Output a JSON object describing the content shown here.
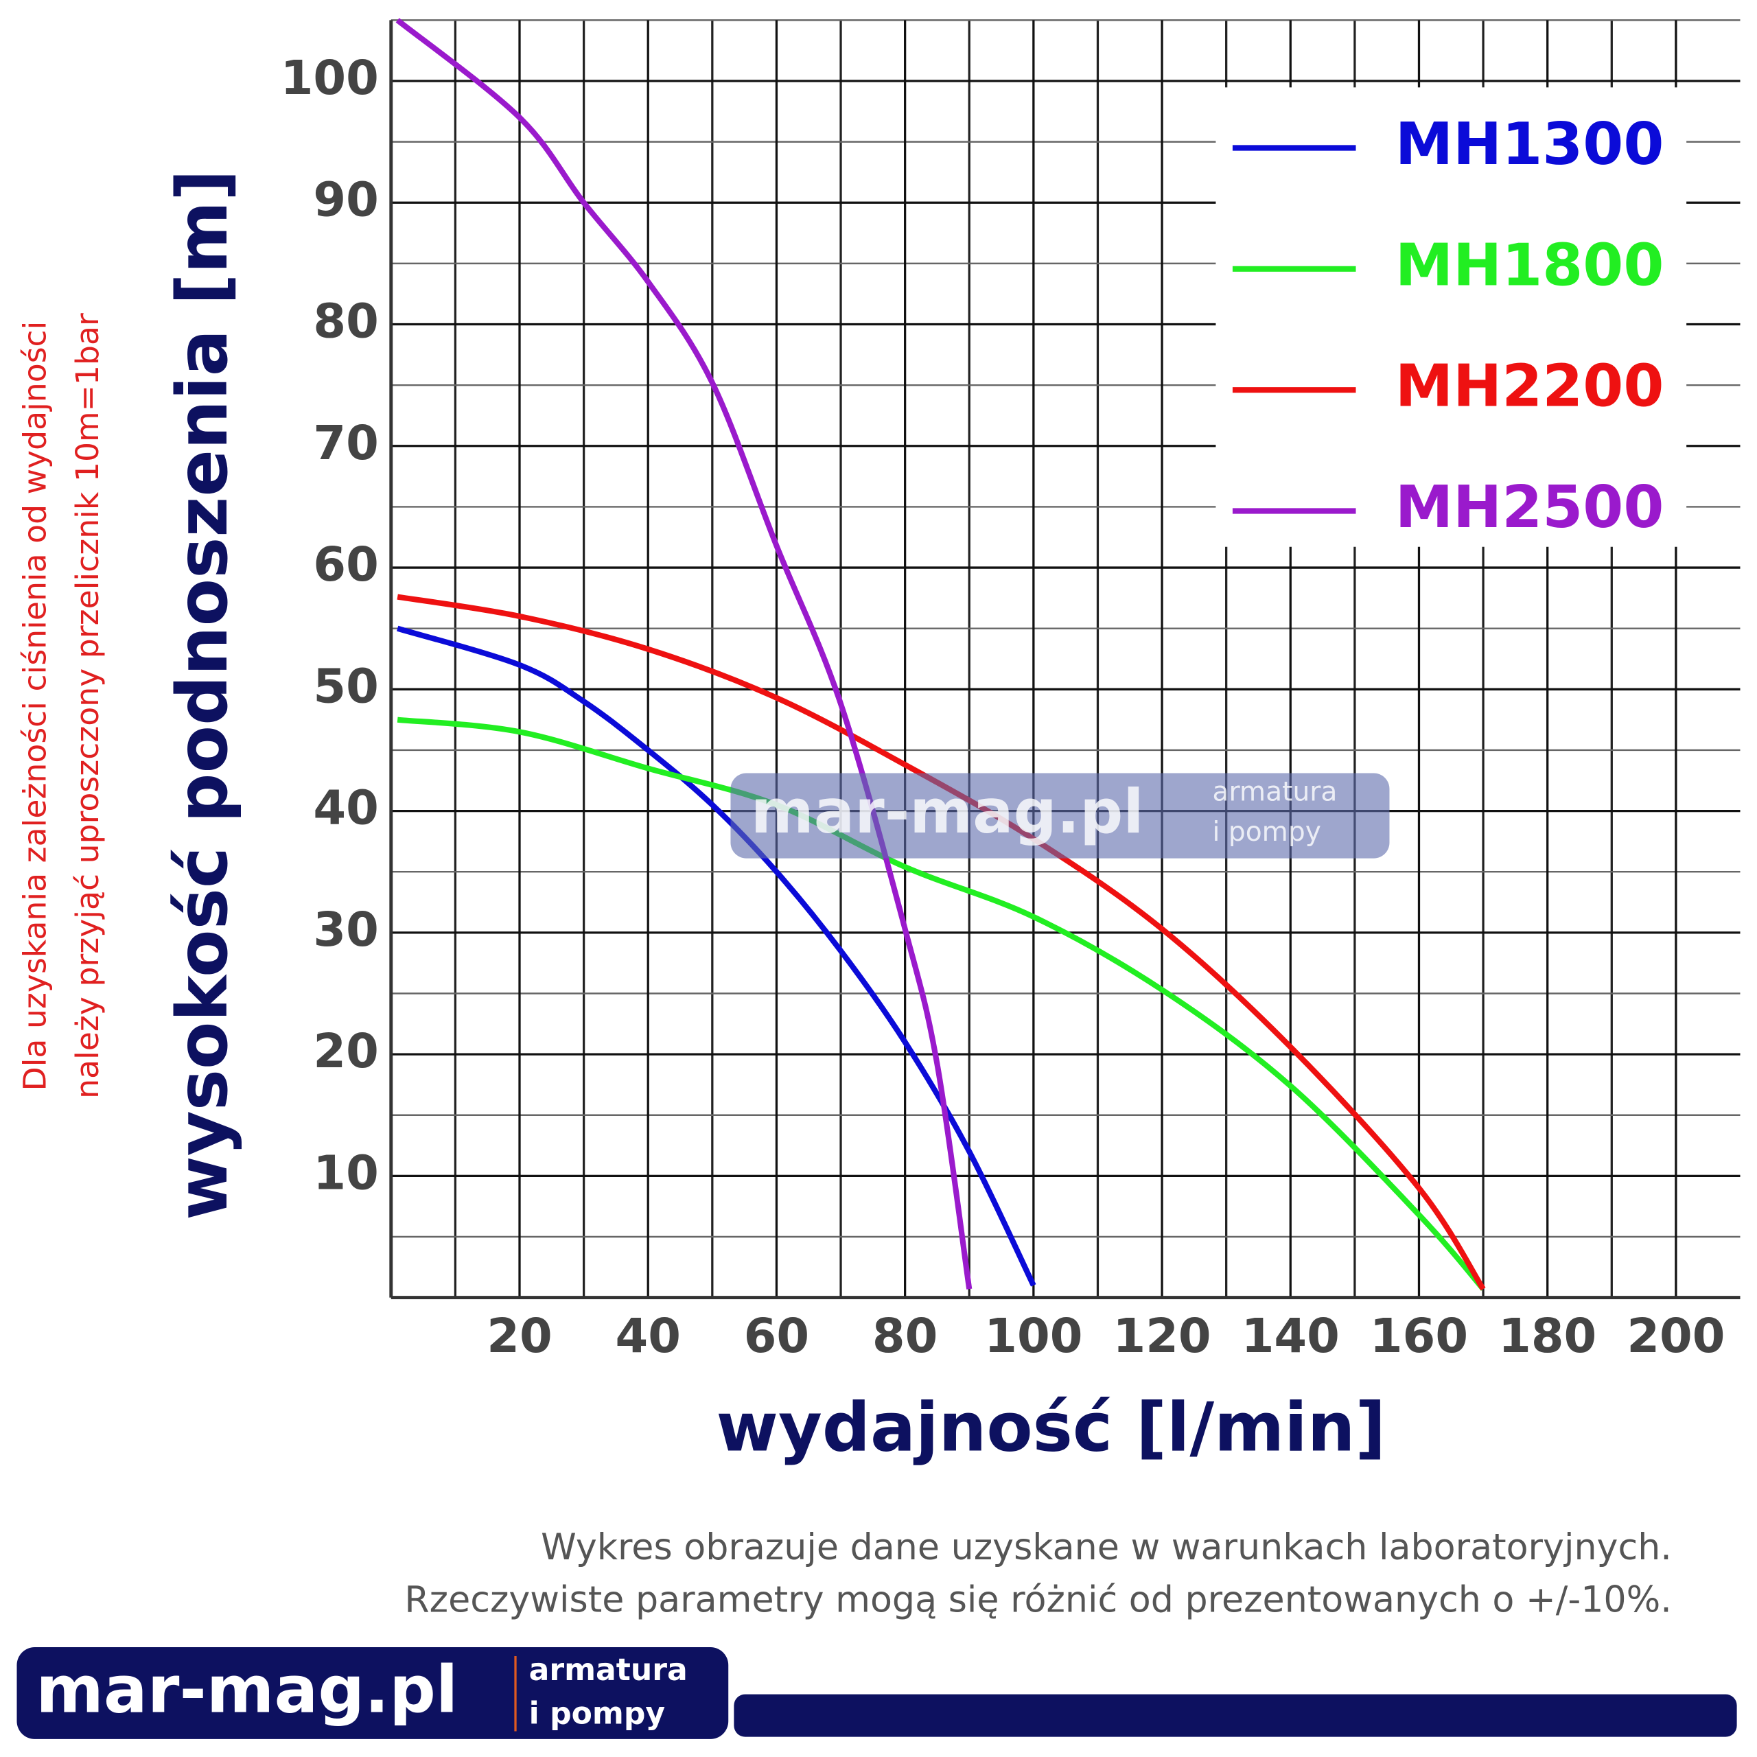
{
  "chart_data": {
    "type": "line",
    "y_label": "wysokość podnoszenia [m]",
    "x_label": "wydajność [l/min]",
    "side_note": [
      "Dla uzyskania zależności ciśnienia od wydajności",
      "należy przyjąć uproszczony przelicznik 10m=1bar"
    ],
    "footnote": [
      "Wykres obrazuje dane uzyskane w warunkach laboratoryjnych.",
      "Rzeczywiste parametry mogą się różnić od prezentowanych o +/-10%."
    ],
    "logo": {
      "name": "mar-mag.pl",
      "tagline": [
        "armatura",
        "i pompy"
      ]
    },
    "xlim": [
      0,
      210
    ],
    "ylim": [
      0,
      105
    ],
    "xticks": [
      20,
      40,
      60,
      80,
      100,
      120,
      140,
      160,
      180,
      200
    ],
    "yticks": [
      10,
      20,
      30,
      40,
      50,
      60,
      70,
      80,
      90,
      100
    ],
    "grid": true,
    "legend": "upper right",
    "series": [
      {
        "name": "MH1300",
        "color": "#0b0bd8",
        "x": [
          1,
          20,
          30,
          40,
          50,
          60,
          70,
          80,
          90,
          100
        ],
        "values": [
          55,
          52,
          49,
          45,
          40.5,
          35,
          28.5,
          21,
          12,
          1
        ]
      },
      {
        "name": "MH1800",
        "color": "#22ee22",
        "x": [
          1,
          20,
          40,
          60,
          80,
          100,
          120,
          140,
          160,
          170
        ],
        "values": [
          47.5,
          46.5,
          43.5,
          40.5,
          35.4,
          31.3,
          25.3,
          17.4,
          6.8,
          0.7
        ]
      },
      {
        "name": "MH2200",
        "color": "#ee1111",
        "x": [
          1,
          20,
          40,
          60,
          80,
          100,
          120,
          140,
          160,
          170
        ],
        "values": [
          57.6,
          56,
          53.3,
          49.3,
          43.8,
          37.7,
          30.3,
          20.6,
          9,
          0.7
        ]
      },
      {
        "name": "MH2500",
        "color": "#9a1acc",
        "x": [
          1,
          20,
          30,
          40,
          50,
          60,
          70,
          80,
          85,
          90
        ],
        "values": [
          105,
          97,
          90,
          83.5,
          75.2,
          61.8,
          48.8,
          30.3,
          19.2,
          0.7
        ]
      }
    ]
  }
}
